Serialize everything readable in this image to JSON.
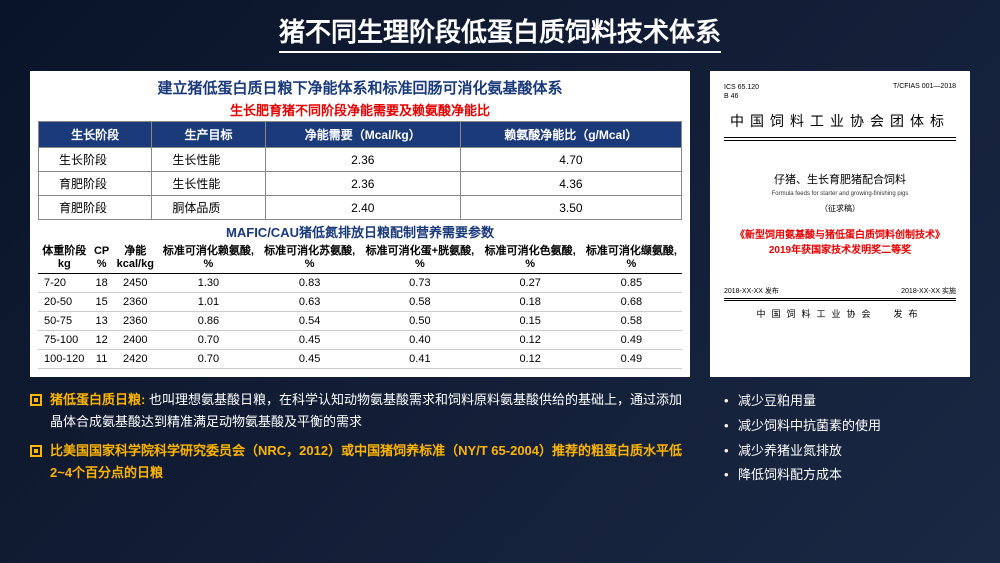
{
  "title": "猪不同生理阶段低蛋白质饲料技术体系",
  "panel": {
    "heading": "建立猪低蛋白质日粮下净能体系和标准回肠可消化氨基酸体系",
    "sub_red": "生长肥育猪不同阶段净能需要及赖氨酸净能比",
    "table1": {
      "headers": [
        "生长阶段",
        "生产目标",
        "净能需要（Mcal/kg）",
        "赖氨酸净能比（g/Mcal）"
      ],
      "rows": [
        [
          "生长阶段",
          "生长性能",
          "2.36",
          "4.70"
        ],
        [
          "育肥阶段",
          "生长性能",
          "2.36",
          "4.36"
        ],
        [
          "育肥阶段",
          "胴体品质",
          "2.40",
          "3.50"
        ]
      ]
    },
    "mid_title": "MAFIC/CAU猪低氮排放日粮配制营养需要参数",
    "table2": {
      "headers": [
        "体重阶段 kg",
        "CP %",
        "净能 kcal/kg",
        "标准可消化赖氨酸, %",
        "标准可消化苏氨酸, %",
        "标准可消化蛋+胱氨酸, %",
        "标准可消化色氨酸, %",
        "标准可消化缬氨酸, %"
      ],
      "rows": [
        [
          "7-20",
          "18",
          "2450",
          "1.30",
          "0.83",
          "0.73",
          "0.27",
          "0.85"
        ],
        [
          "20-50",
          "15",
          "2360",
          "1.01",
          "0.63",
          "0.58",
          "0.18",
          "0.68"
        ],
        [
          "50-75",
          "13",
          "2360",
          "0.86",
          "0.54",
          "0.50",
          "0.15",
          "0.58"
        ],
        [
          "75-100",
          "12",
          "2400",
          "0.70",
          "0.45",
          "0.40",
          "0.12",
          "0.49"
        ],
        [
          "100-120",
          "11",
          "2420",
          "0.70",
          "0.45",
          "0.41",
          "0.12",
          "0.49"
        ]
      ]
    }
  },
  "doc": {
    "top_left_1": "ICS 65.120",
    "top_left_2": "B 46",
    "top_right": "T/CFIAS 001—2018",
    "main": "中国饲料工业协会团体标",
    "sub": "仔猪、生长育肥猪配合饲料",
    "sub_en": "Formula feeds for starter and growing-finishing pigs",
    "draft": "（征求稿）",
    "red1": "《新型饲用氨基酸与猪低蛋白质饲料创制技术》",
    "red2": "2019年获国家技术发明奖二等奖",
    "pub": "2018-XX-XX 发布",
    "impl": "2018-XX-XX 实施",
    "issuer": "中国饲料工业协会",
    "issue_word": "发布"
  },
  "bullets_left": {
    "b1_label": "猪低蛋白质日粮:",
    "b1_text": " 也叫理想氨基酸日粮，在科学认知动物氨基酸需求和饲料原料氨基酸供给的基础上，通过添加晶体合成氨基酸达到精准满足动物氨基酸及平衡的需求",
    "b2_text": "比美国国家科学院科学研究委员会（NRC，2012）或中国猪饲养标准（NY/T 65-2004）推荐的粗蛋白质水平低2~4个百分点的日粮"
  },
  "bullets_right": [
    "减少豆粕用量",
    "减少饲料中抗菌素的使用",
    "减少养猪业氮排放",
    "降低饲料配方成本"
  ]
}
